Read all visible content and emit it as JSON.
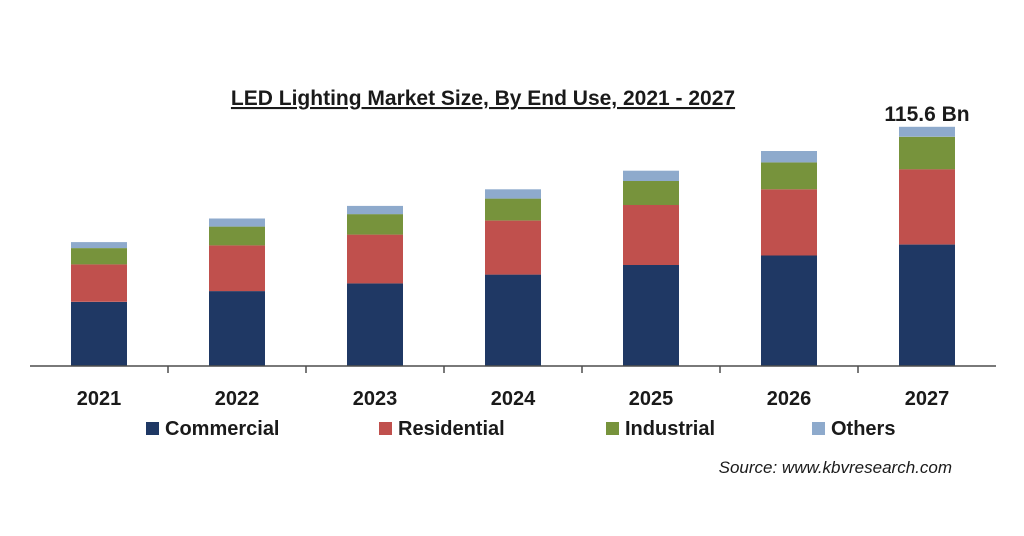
{
  "chart_data": {
    "type": "bar",
    "stacked": true,
    "title": "LED Lighting Market Size, By End Use, 2021 - 2027",
    "categories": [
      "2021",
      "2022",
      "2023",
      "2024",
      "2025",
      "2026",
      "2027"
    ],
    "series": [
      {
        "name": "Commercial",
        "color": "#1f3864",
        "values": [
          31.0,
          36.2,
          39.9,
          44.2,
          48.8,
          53.4,
          58.7
        ]
      },
      {
        "name": "Residential",
        "color": "#c0504d",
        "values": [
          18.1,
          22.1,
          23.6,
          26.1,
          29.0,
          32.0,
          36.4
        ]
      },
      {
        "name": "Industrial",
        "color": "#77933c",
        "values": [
          7.9,
          9.1,
          9.9,
          10.6,
          11.6,
          13.0,
          15.7
        ]
      },
      {
        "name": "Others",
        "color": "#8eaacc",
        "values": [
          2.9,
          3.9,
          4.0,
          4.5,
          5.0,
          5.5,
          4.8
        ]
      }
    ],
    "ylim": [
      0,
      118
    ],
    "grid": false,
    "legend_position": "bottom",
    "annotation": {
      "category": "2027",
      "text": "115.6 Bn"
    },
    "source": "Source: www.kbvresearch.com"
  }
}
